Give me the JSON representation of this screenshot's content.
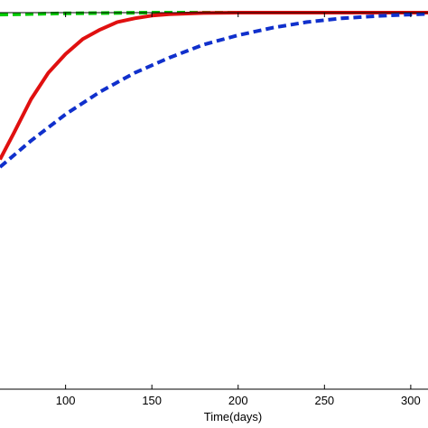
{
  "chart_data": {
    "type": "line",
    "xlabel": "Time(days)",
    "ylabel": "",
    "xticks": [
      100,
      150,
      200,
      250,
      300
    ],
    "xtick_labels": [
      "100",
      "150",
      "200",
      "250",
      "300"
    ],
    "xlim": [
      62,
      310
    ],
    "ylim": [
      0,
      1
    ],
    "grid": false,
    "series": [
      {
        "color": "#00cc00",
        "style": "dashed",
        "points": [
          [
            62,
            0.995
          ],
          [
            100,
            0.998
          ],
          [
            150,
            1.0
          ],
          [
            200,
            1.0
          ],
          [
            250,
            1.0
          ],
          [
            300,
            1.0
          ],
          [
            310,
            1.0
          ]
        ]
      },
      {
        "color": "#e01010",
        "style": "solid",
        "points": [
          [
            62,
            0.61
          ],
          [
            70,
            0.68
          ],
          [
            80,
            0.77
          ],
          [
            90,
            0.84
          ],
          [
            100,
            0.89
          ],
          [
            110,
            0.93
          ],
          [
            120,
            0.955
          ],
          [
            130,
            0.975
          ],
          [
            140,
            0.985
          ],
          [
            150,
            0.992
          ],
          [
            160,
            0.996
          ],
          [
            180,
            0.999
          ],
          [
            200,
            1.0
          ],
          [
            250,
            1.0
          ],
          [
            300,
            1.0
          ],
          [
            310,
            1.0
          ]
        ]
      },
      {
        "color": "#1030cc",
        "style": "dashed",
        "points": [
          [
            62,
            0.59
          ],
          [
            80,
            0.66
          ],
          [
            100,
            0.73
          ],
          [
            120,
            0.79
          ],
          [
            140,
            0.84
          ],
          [
            160,
            0.88
          ],
          [
            180,
            0.915
          ],
          [
            200,
            0.94
          ],
          [
            220,
            0.96
          ],
          [
            240,
            0.975
          ],
          [
            260,
            0.985
          ],
          [
            280,
            0.991
          ],
          [
            300,
            0.995
          ],
          [
            310,
            0.997
          ]
        ]
      }
    ]
  }
}
